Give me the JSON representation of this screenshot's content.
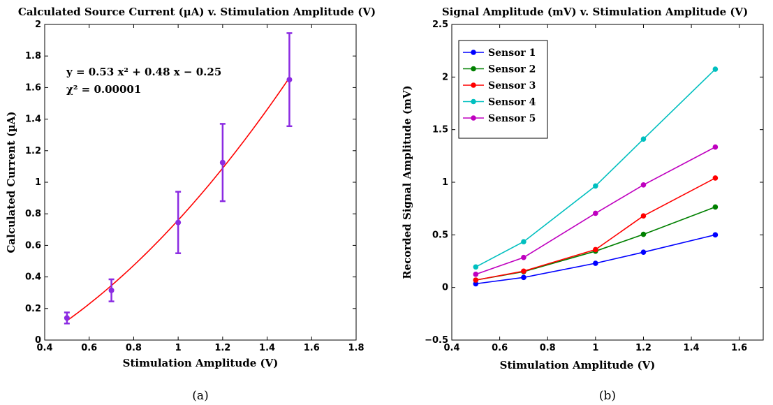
{
  "chart_data": [
    {
      "type": "scatter",
      "panel_label": "(a)",
      "title": "Calculated Source Current (µA) v. Stimulation Amplitude (V)",
      "xlabel": "Stimulation Amplitude (V)",
      "ylabel": "Calculated Current (µA)",
      "xlim": [
        0.4,
        1.8
      ],
      "ylim": [
        0,
        2
      ],
      "xticks": [
        "0.4",
        "0.6",
        "0.8",
        "1",
        "1.2",
        "1.4",
        "1.6",
        "1.8"
      ],
      "yticks": [
        "0",
        "0.2",
        "0.4",
        "0.6",
        "0.8",
        "1",
        "1.2",
        "1.4",
        "1.6",
        "1.8",
        "2"
      ],
      "grid": false,
      "points": {
        "x": [
          0.5,
          0.7,
          1.0,
          1.2,
          1.5
        ],
        "y": [
          0.14,
          0.315,
          0.745,
          1.125,
          1.65
        ],
        "err_low": [
          0.035,
          0.07,
          0.195,
          0.245,
          0.295
        ],
        "err_high": [
          0.035,
          0.07,
          0.195,
          0.245,
          0.295
        ],
        "color": "#8B2BE2"
      },
      "fit": {
        "a": 0.53,
        "b": 0.48,
        "c": -0.25,
        "x_range": [
          0.5,
          1.5
        ],
        "color": "#ff0000"
      },
      "annotations": {
        "equation": "y = 0.53 x² + 0.48 x − 0.25",
        "chi": "χ² = 0.00001"
      }
    },
    {
      "type": "line",
      "panel_label": "(b)",
      "title": "Signal Amplitude (mV) v. Stimulation Amplitude (V)",
      "xlabel": "Stimulation Amplitude (V)",
      "ylabel": "Recorded Signal Amplitude (mV)",
      "xlim": [
        0.4,
        1.7
      ],
      "ylim": [
        -0.5,
        2.5
      ],
      "xticks": [
        "0.4",
        "0.6",
        "0.8",
        "1",
        "1.2",
        "1.4",
        "1.6"
      ],
      "yticks": [
        "−0.5",
        "0",
        "0.5",
        "1",
        "1.5",
        "2",
        "2.5"
      ],
      "grid": false,
      "legend_position": "top-left",
      "x": [
        0.5,
        0.7,
        1.0,
        1.2,
        1.5
      ],
      "series": [
        {
          "name": "Sensor 1",
          "color": "#0000ff",
          "values": [
            0.035,
            0.095,
            0.23,
            0.335,
            0.5
          ]
        },
        {
          "name": "Sensor 2",
          "color": "#008000",
          "values": [
            0.07,
            0.15,
            0.345,
            0.505,
            0.765
          ]
        },
        {
          "name": "Sensor 3",
          "color": "#ff0000",
          "values": [
            0.07,
            0.155,
            0.36,
            0.68,
            1.04
          ]
        },
        {
          "name": "Sensor 4",
          "color": "#00bfbf",
          "values": [
            0.195,
            0.435,
            0.965,
            1.41,
            2.075
          ]
        },
        {
          "name": "Sensor 5",
          "color": "#bf00bf",
          "values": [
            0.125,
            0.285,
            0.705,
            0.975,
            1.335
          ]
        }
      ]
    }
  ]
}
